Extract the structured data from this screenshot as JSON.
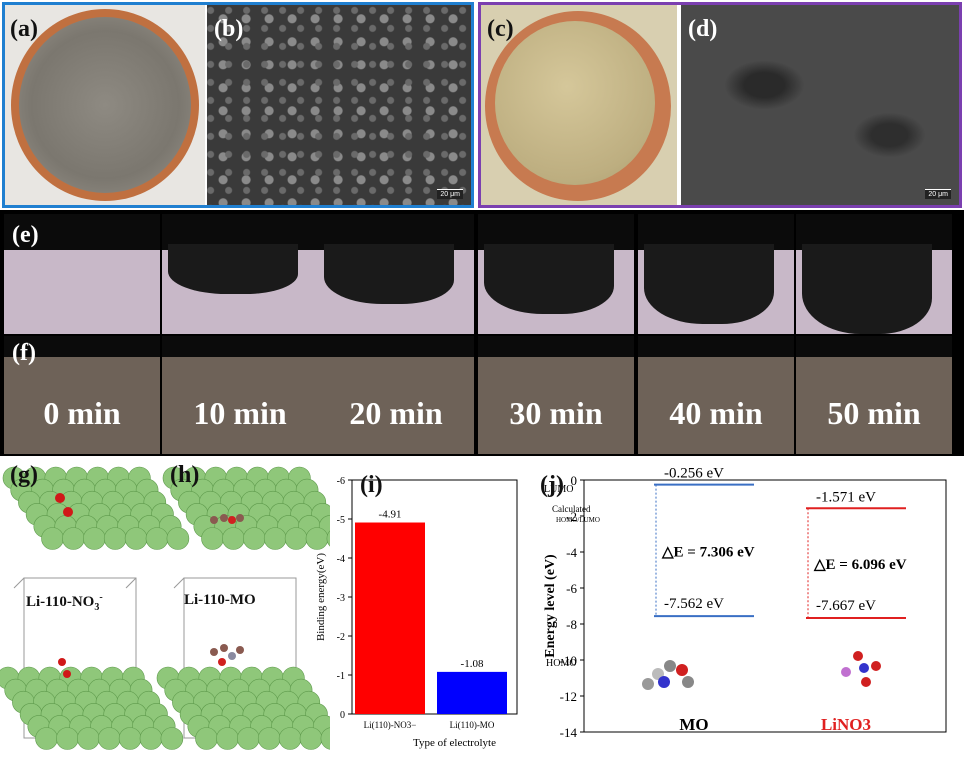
{
  "panels": {
    "a": "(a)",
    "b": "(b)",
    "c": "(c)",
    "d": "(d)",
    "e": "(e)",
    "f": "(f)",
    "g": "(g)",
    "h": "(h)",
    "i": "(i)",
    "j": "(j)"
  },
  "scale_bar_b": "20 μm",
  "scale_bar_d": "20 μm",
  "times": [
    "0 min",
    "10 min",
    "20 min",
    "30 min",
    "40 min",
    "50 min"
  ],
  "structures": {
    "g_label": "Li-110-NO3-",
    "h_label": "Li-110-MO"
  },
  "colors": {
    "blue_border": "#1f7fd0",
    "purple_border": "#7b3fb0",
    "red_bar": "#ff0000",
    "blue_bar": "#0000ff"
  },
  "chart_data": [
    {
      "type": "bar",
      "categories": [
        "Li(110)-NO3−",
        "Li(110)-MO"
      ],
      "values": [
        -4.91,
        -1.08
      ],
      "data_labels": [
        "-4.91",
        "-1.08"
      ],
      "ylabel": "Binding energy(eV)",
      "xlabel": "Type of electrolyte",
      "ylim": [
        -6,
        0
      ],
      "yticks": [
        "-6",
        "-5",
        "-4",
        "-3",
        "-2",
        "-1",
        "0"
      ],
      "inverted_y": true
    },
    {
      "type": "energy-level",
      "ylabel": "Energy level (eV)",
      "ylim": [
        -14,
        0
      ],
      "yticks": [
        "0",
        "-2",
        "-4",
        "-6",
        "-8",
        "-10",
        "-12",
        "-14"
      ],
      "legend_lumo": "LUMO",
      "legend_homo": "HOMO",
      "legend_calc": "Calculated",
      "legend_calc2": "HOMO/LUMO",
      "series": [
        {
          "name": "MO",
          "lumo": -0.256,
          "homo": -7.562,
          "lumo_label": "-0.256 eV",
          "homo_label": "-7.562 eV",
          "gap_label": "△E = 7.306 eV"
        },
        {
          "name": "LiNO3",
          "lumo": -1.571,
          "homo": -7.667,
          "lumo_label": "-1.571 eV",
          "homo_label": "-7.667 eV",
          "gap_label": "△E = 6.096 eV"
        }
      ]
    }
  ]
}
